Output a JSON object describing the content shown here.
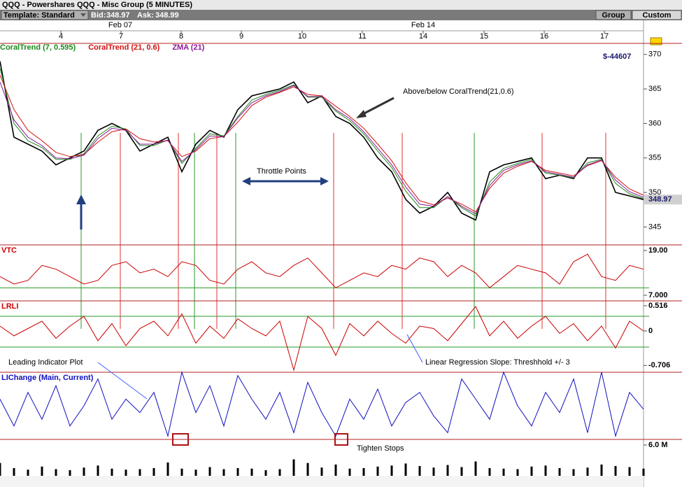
{
  "window": {
    "title": "QQQ - Powershares QQQ - Misc Group (5 MINUTES)",
    "template": "Template: Standard",
    "bid_label": "Bid:",
    "bid": 348.97,
    "ask_label": "Ask:",
    "ask": 348.99,
    "buttons": [
      "Group",
      "Custom"
    ]
  },
  "annotations": [
    "$-44607",
    "Above/below CoralTrend(21,0.6)",
    "Throttle Points",
    "Leading Indicator Plot",
    "Linear Regression Slope:  Threshhold +/- 3",
    "Tighten Stops"
  ],
  "chart_data": [
    {
      "type": "line",
      "x": [
        0,
        1,
        2,
        3,
        4,
        5,
        6,
        7,
        8,
        9,
        10,
        11,
        12,
        13,
        14,
        15,
        16,
        17,
        18,
        19,
        20,
        21,
        22,
        23,
        24,
        25,
        26,
        27,
        28,
        29,
        30,
        31,
        32,
        33,
        34,
        35,
        36,
        37,
        38,
        39,
        40,
        41,
        42,
        43,
        44,
        45,
        46
      ],
      "xlim": [
        0,
        46
      ],
      "xticks": [
        {
          "value": 4.35,
          "label": "4"
        },
        {
          "value": 8.65,
          "label": "7"
        },
        {
          "value": 12.95,
          "label": "8"
        },
        {
          "value": 17.25,
          "label": "9"
        },
        {
          "value": 21.6,
          "label": "10"
        },
        {
          "value": 25.9,
          "label": "11"
        },
        {
          "value": 30.25,
          "label": "14"
        },
        {
          "value": 34.6,
          "label": "15"
        },
        {
          "value": 38.9,
          "label": "16"
        },
        {
          "value": 43.2,
          "label": "17"
        }
      ],
      "month_labels": [
        {
          "value": 8.6,
          "label": "Feb 07"
        },
        {
          "value": 30.25,
          "label": "Feb 14"
        }
      ],
      "ylim": [
        342.4,
        371.6
      ],
      "yticks": [
        345,
        350,
        355,
        360,
        365,
        370
      ],
      "last_value": 348.97,
      "series": [
        {
          "color": "#000000",
          "values": [
            369,
            358,
            357,
            356,
            354,
            355,
            356,
            359,
            360,
            359,
            356,
            357,
            358,
            353,
            357,
            359,
            358,
            362,
            364,
            364.5,
            365,
            366,
            363,
            364,
            361,
            360,
            358,
            355,
            353,
            349,
            347,
            348,
            350,
            347,
            346,
            353,
            354,
            354.5,
            355,
            352,
            352.5,
            352,
            355,
            355,
            350,
            349.5,
            348.97
          ]
        },
        {
          "name": "CoralTrend (7, 0.595)",
          "color": "#1a8a1a",
          "values": [
            368,
            360,
            357.5,
            356.5,
            354.8,
            354.8,
            355.6,
            358.2,
            359.6,
            359.2,
            356.8,
            356.8,
            357.6,
            354.2,
            356.4,
            358.5,
            358.2,
            361,
            363.4,
            364.2,
            364.8,
            365.6,
            363.8,
            363.8,
            361.8,
            360.4,
            358.5,
            356,
            353.6,
            350.2,
            347.8,
            347.8,
            349.4,
            347.8,
            346.6,
            351.5,
            353.5,
            354.2,
            354.8,
            352.8,
            352.5,
            352.1,
            354.3,
            354.8,
            351.3,
            349.8,
            349.1
          ]
        },
        {
          "name": "CoralTrend (21, 0.6)",
          "color": "#d01010",
          "values": [
            367,
            362,
            359,
            357.5,
            355.8,
            355.2,
            355.5,
            357.3,
            358.8,
            359.2,
            357.8,
            357.3,
            357.5,
            355.2,
            356,
            357.8,
            358.1,
            360.2,
            362.6,
            363.8,
            364.5,
            365.3,
            364.2,
            364,
            362.5,
            361,
            359.3,
            357,
            354.6,
            351.4,
            348.8,
            348.2,
            349.2,
            348.3,
            347.2,
            350.6,
            352.8,
            353.8,
            354.5,
            353.2,
            352.8,
            352.4,
            353.9,
            354.6,
            352.2,
            350.5,
            349.6
          ]
        },
        {
          "name": "ZMA (21)",
          "color": "#8a1a9a",
          "values": [
            366,
            360.5,
            358,
            356.8,
            355,
            354.9,
            355.4,
            357.8,
            359.3,
            359,
            357,
            357,
            357.6,
            354.5,
            356.2,
            358.2,
            358.1,
            360.8,
            363,
            364,
            364.6,
            365.5,
            363.9,
            363.9,
            362,
            360.7,
            358.8,
            356.4,
            354,
            350.8,
            348.3,
            348,
            349.4,
            348,
            346.9,
            351,
            353.2,
            354,
            354.6,
            353,
            352.6,
            352.2,
            354,
            354.7,
            351.8,
            350.1,
            349.3
          ]
        }
      ],
      "signals": [
        {
          "x": 5.8,
          "color": "#2a9a2a"
        },
        {
          "x": 8.6,
          "color": "#e03030"
        },
        {
          "x": 12.75,
          "color": "#e03030"
        },
        {
          "x": 13.9,
          "color": "#2a9a2a"
        },
        {
          "x": 15.5,
          "color": "#e03030"
        },
        {
          "x": 16.85,
          "color": "#2a9a2a"
        },
        {
          "x": 23.85,
          "color": "#e03030"
        },
        {
          "x": 28.75,
          "color": "#e03030"
        },
        {
          "x": 33.9,
          "color": "#2a9a2a"
        },
        {
          "x": 38.75,
          "color": "#e03030"
        },
        {
          "x": 43.3,
          "color": "#e03030"
        }
      ]
    },
    {
      "type": "line",
      "title": "VTC",
      "color": "#cc0000",
      "ylim": [
        5.5,
        20.5
      ],
      "yticks": [
        {
          "value": 19,
          "label": "19.00"
        },
        {
          "value": 7,
          "label": "7.000"
        }
      ],
      "thresholds": [
        9
      ],
      "values": [
        12,
        10,
        11,
        15,
        14,
        12,
        10,
        11,
        15,
        16,
        13,
        14,
        12,
        16,
        15,
        11,
        10,
        14,
        16,
        13,
        12,
        15,
        17,
        13,
        9,
        11,
        13,
        12,
        15,
        14,
        17,
        16,
        12,
        15,
        13,
        9,
        12,
        15,
        14,
        13,
        10,
        16,
        18,
        12,
        11,
        15,
        14
      ]
    },
    {
      "type": "line",
      "title": "LRLI",
      "color": "#cc0000",
      "ylim": [
        -0.845,
        0.616
      ],
      "yticks": [
        0.516,
        0,
        -0.706
      ],
      "thresholds": [
        0.3,
        -0.33
      ],
      "values": [
        0.1,
        -0.1,
        0.05,
        0.2,
        -0.15,
        0.1,
        0.3,
        -0.2,
        0.15,
        -0.3,
        0.05,
        0.2,
        -0.1,
        0.35,
        -0.25,
        0.1,
        -0.15,
        0.25,
        0.05,
        -0.1,
        0.2,
        -0.8,
        0.3,
        0.05,
        -0.5,
        0.15,
        -0.1,
        0.2,
        -0.05,
        -0.25,
        0.1,
        0.05,
        -0.2,
        0.15,
        0.5,
        -0.1,
        0.2,
        -0.15,
        0.1,
        0.3,
        -0.05,
        0.15,
        -0.2,
        0.1,
        -0.35,
        0.2,
        0
      ]
    },
    {
      "type": "line",
      "title": "LIChange (Main, Current)",
      "color": "#1010c0",
      "ylim": [
        0,
        100
      ],
      "values": [
        60,
        20,
        70,
        30,
        80,
        20,
        50,
        90,
        30,
        60,
        40,
        70,
        5,
        100,
        40,
        80,
        20,
        95,
        60,
        30,
        70,
        10,
        85,
        40,
        5,
        60,
        30,
        75,
        20,
        55,
        70,
        35,
        10,
        90,
        60,
        30,
        100,
        50,
        20,
        70,
        40,
        90,
        10,
        100,
        5,
        70,
        45
      ]
    },
    {
      "type": "bar",
      "color": "#000000",
      "ylim": [
        0,
        7090000
      ],
      "yticks": [
        {
          "value": 6000000,
          "label": "6.0 M"
        }
      ],
      "values": [
        2500000,
        1500000,
        1200000,
        1800000,
        1300000,
        1100000,
        1600000,
        2000000,
        1400000,
        1200000,
        1300000,
        1500000,
        2600000,
        1400000,
        1200000,
        1700000,
        1300000,
        1500000,
        1400000,
        1100000,
        1300000,
        3200000,
        2500000,
        1600000,
        2200000,
        1400000,
        1500000,
        1800000,
        2000000,
        2400000,
        1900000,
        1600000,
        2100000,
        1700000,
        2800000,
        1500000,
        1400000,
        1300000,
        1800000,
        2000000,
        1500000,
        1300000,
        1600000,
        2200000,
        1900000,
        1700000,
        1400000
      ]
    }
  ]
}
